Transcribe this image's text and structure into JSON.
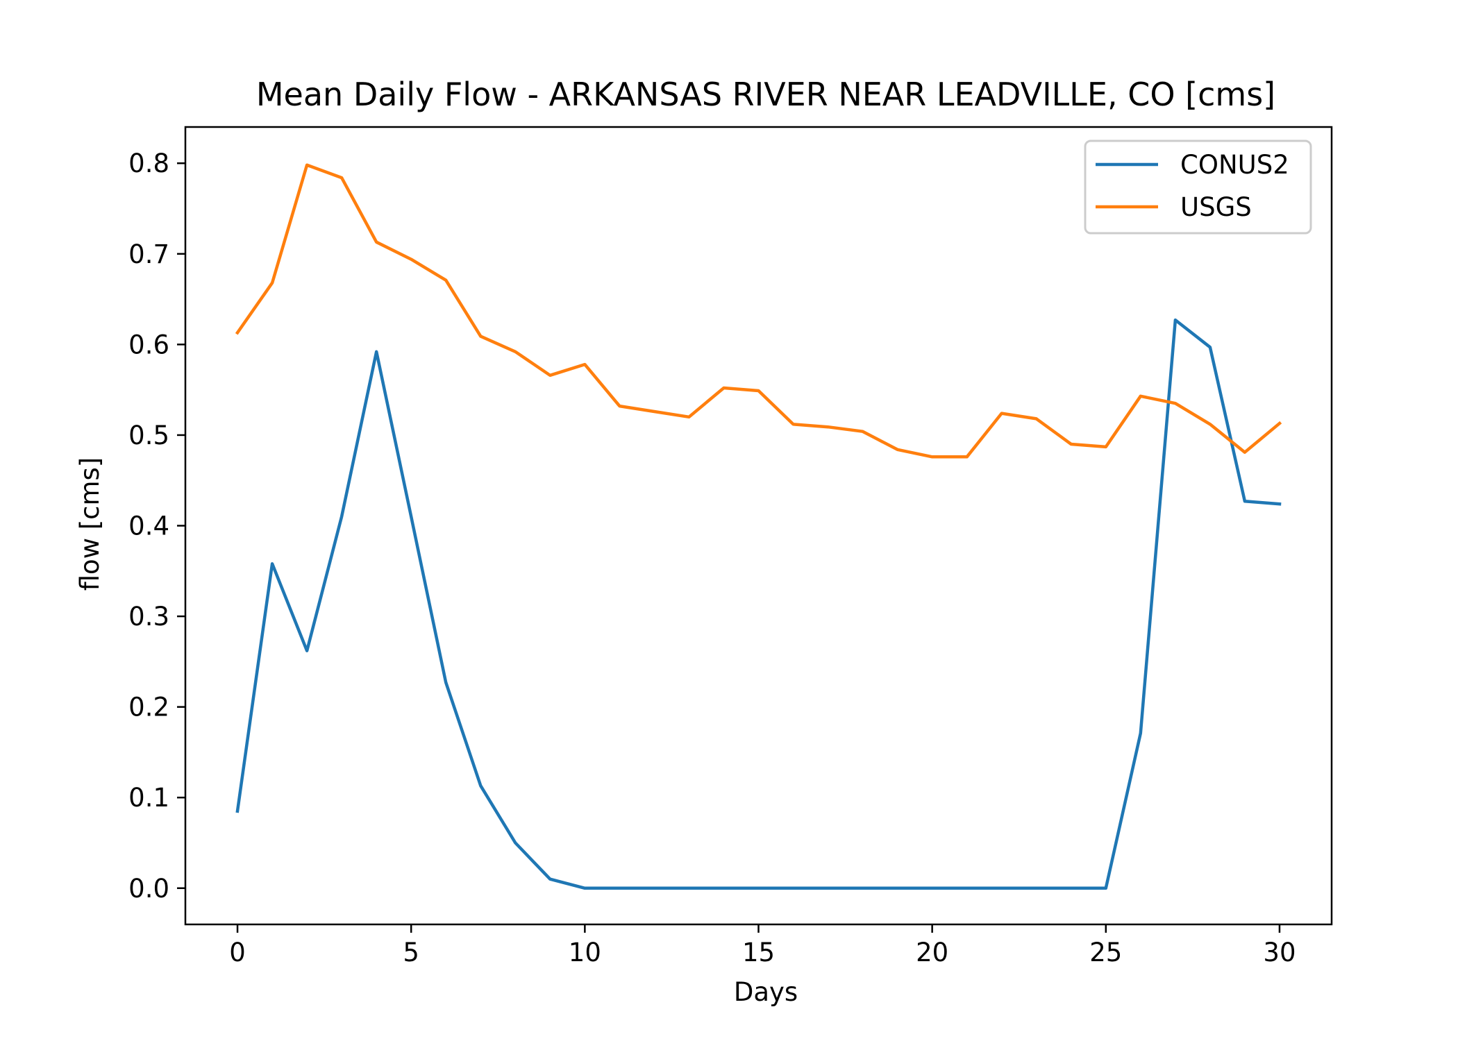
{
  "chart_data": {
    "type": "line",
    "title": "Mean Daily Flow - ARKANSAS RIVER NEAR LEADVILLE, CO [cms]",
    "xlabel": "Days",
    "ylabel": "flow [cms]",
    "xlim": [
      -1.5,
      31.5
    ],
    "ylim": [
      -0.04,
      0.84
    ],
    "xticks": [
      0,
      5,
      10,
      15,
      20,
      25,
      30
    ],
    "xtick_labels": [
      "0",
      "5",
      "10",
      "15",
      "20",
      "25",
      "30"
    ],
    "yticks": [
      0.0,
      0.1,
      0.2,
      0.3,
      0.4,
      0.5,
      0.6,
      0.7,
      0.8
    ],
    "ytick_labels": [
      "0.0",
      "0.1",
      "0.2",
      "0.3",
      "0.4",
      "0.5",
      "0.6",
      "0.7",
      "0.8"
    ],
    "grid": false,
    "legend_position": "top-right",
    "x": [
      0,
      1,
      2,
      3,
      4,
      5,
      6,
      7,
      8,
      9,
      10,
      11,
      12,
      13,
      14,
      15,
      16,
      17,
      18,
      19,
      20,
      21,
      22,
      23,
      24,
      25,
      26,
      27,
      28,
      29,
      30
    ],
    "series": [
      {
        "name": "CONUS2",
        "color": "#1f77b4",
        "values": [
          0.085,
          0.358,
          0.262,
          0.41,
          0.592,
          0.41,
          0.227,
          0.113,
          0.05,
          0.01,
          0.0,
          0.0,
          0.0,
          0.0,
          0.0,
          0.0,
          0.0,
          0.0,
          0.0,
          0.0,
          0.0,
          0.0,
          0.0,
          0.0,
          0.0,
          0.0,
          0.171,
          0.627,
          0.597,
          0.427,
          0.424
        ]
      },
      {
        "name": "USGS",
        "color": "#ff7f0e",
        "values": [
          0.613,
          0.668,
          0.798,
          0.784,
          0.713,
          0.694,
          0.671,
          0.609,
          0.592,
          0.566,
          0.578,
          0.532,
          0.526,
          0.52,
          0.552,
          0.549,
          0.512,
          0.509,
          0.504,
          0.484,
          0.476,
          0.476,
          0.524,
          0.518,
          0.49,
          0.487,
          0.543,
          0.535,
          0.512,
          0.481,
          0.513
        ]
      }
    ]
  }
}
